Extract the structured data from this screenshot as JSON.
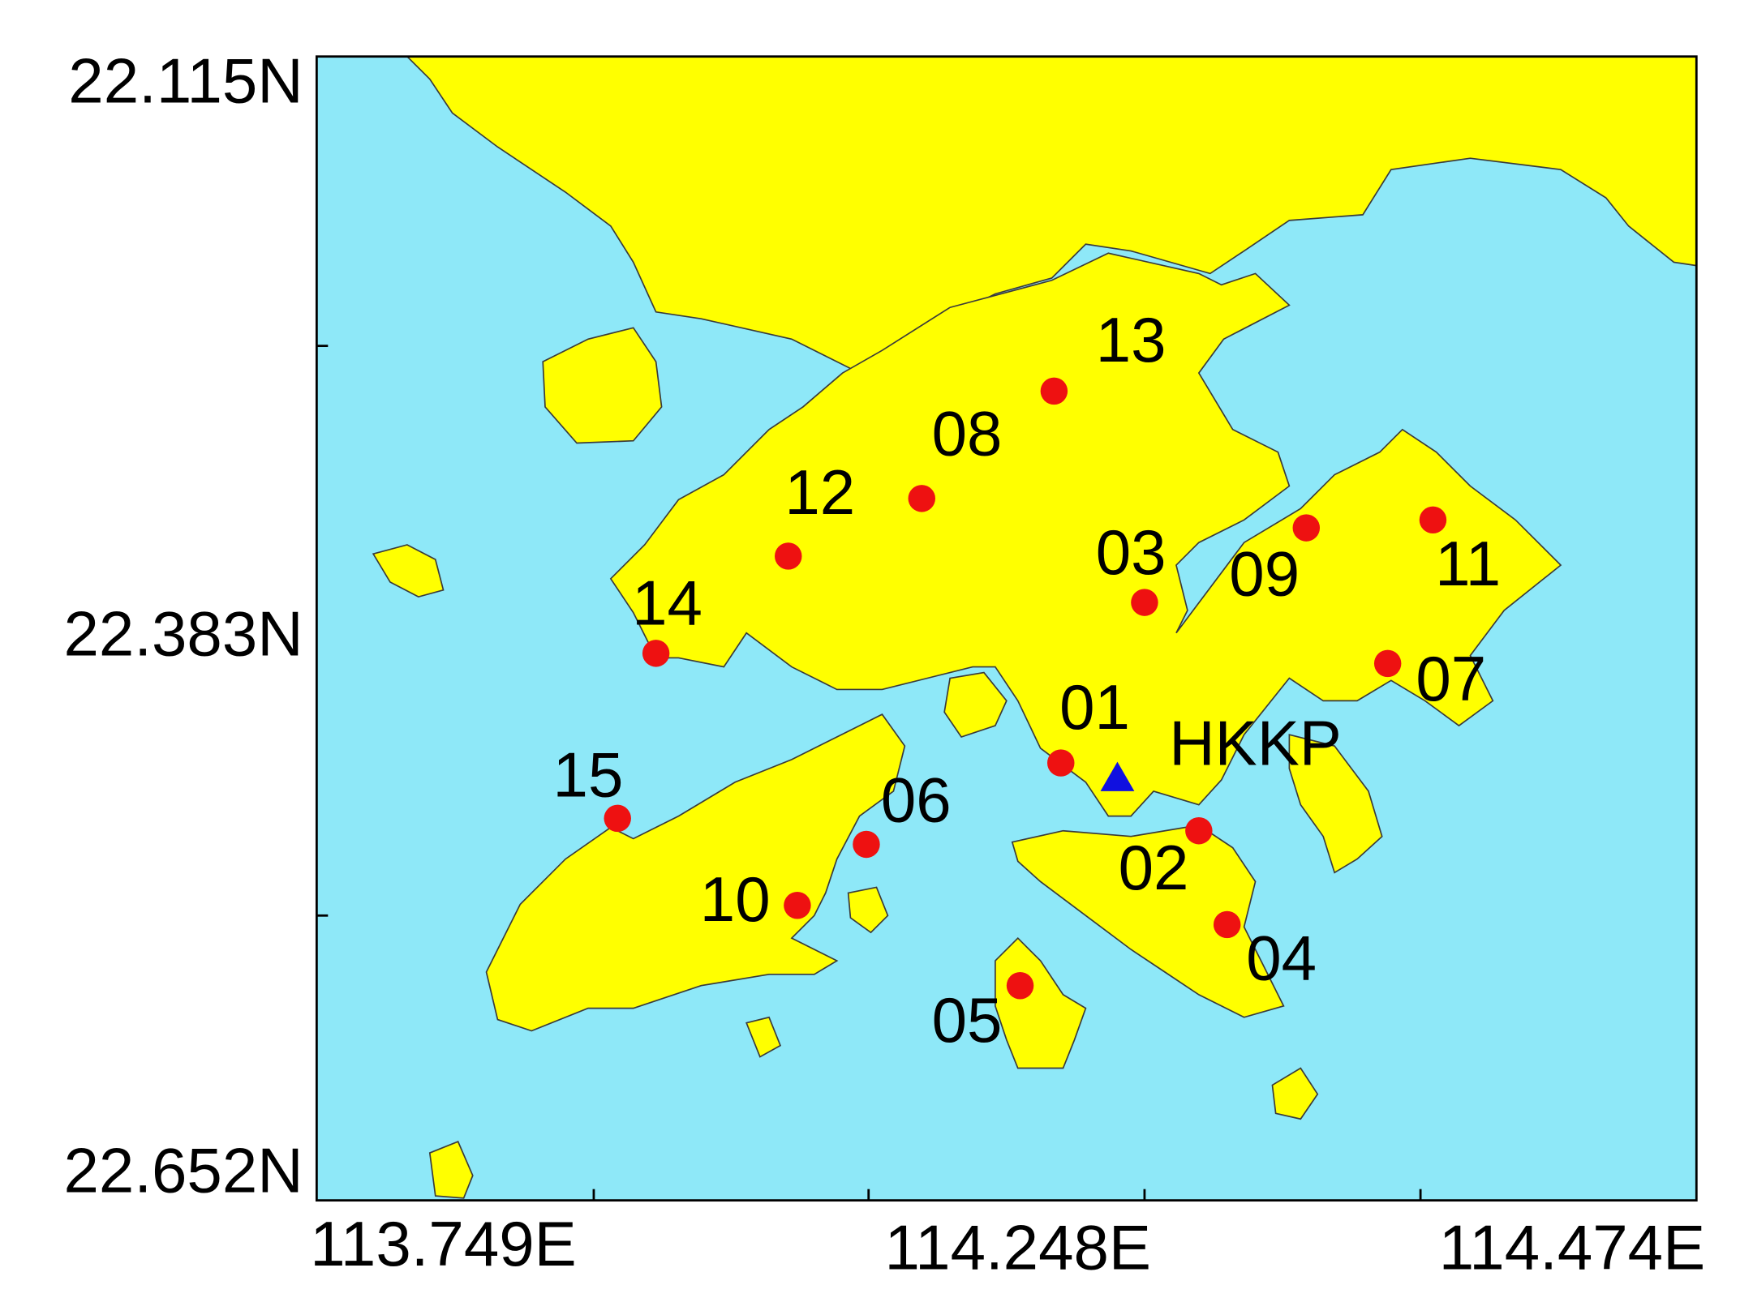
{
  "map": {
    "y_labels": [
      "22.115N",
      "22.383N",
      "22.652N"
    ],
    "x_labels": [
      "113.749E",
      "114.248E",
      "114.474E"
    ],
    "stations": [
      {
        "label": "01"
      },
      {
        "label": "02"
      },
      {
        "label": "03"
      },
      {
        "label": "04"
      },
      {
        "label": "05"
      },
      {
        "label": "06"
      },
      {
        "label": "07"
      },
      {
        "label": "08"
      },
      {
        "label": "09"
      },
      {
        "label": "10"
      },
      {
        "label": "11"
      },
      {
        "label": "12"
      },
      {
        "label": "13"
      },
      {
        "label": "14"
      },
      {
        "label": "15"
      }
    ],
    "reference_station": {
      "label": "HKKP"
    }
  }
}
